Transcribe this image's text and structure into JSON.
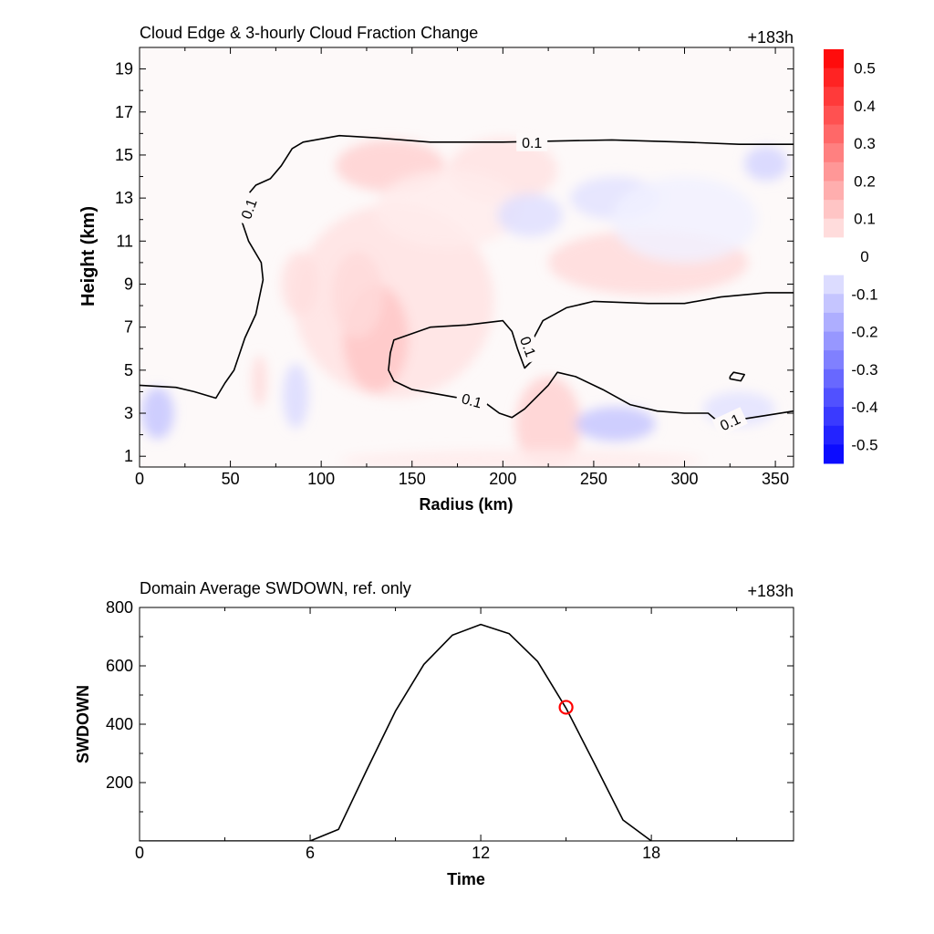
{
  "chart_data": [
    {
      "type": "heatmap",
      "title": "Cloud Edge & 3-hourly Cloud Fraction Change",
      "time_label": "+183h",
      "xlabel": "Radius (km)",
      "ylabel": "Height (km)",
      "xlim": [
        0,
        360
      ],
      "ylim": [
        0.5,
        20
      ],
      "x_ticks": [
        "0",
        "50",
        "100",
        "150",
        "200",
        "250",
        "300",
        "350"
      ],
      "y_ticks": [
        "1",
        "3",
        "5",
        "7",
        "9",
        "11",
        "13",
        "15",
        "17",
        "19"
      ],
      "colorbar": {
        "range": [
          -0.55,
          0.55
        ],
        "labels": [
          "0.5",
          "0.4",
          "0.3",
          "0.2",
          "0.1",
          "0",
          "-0.1",
          "-0.2",
          "-0.3",
          "-0.4",
          "-0.5"
        ],
        "positive_color": "#ff0000",
        "negative_color": "#0000ff"
      },
      "cloud_edge_contour": {
        "level": "0.1",
        "color": "#000000",
        "outer": [
          [
            0,
            4.3
          ],
          [
            20,
            4.2
          ],
          [
            30,
            4.0
          ],
          [
            42,
            3.7
          ],
          [
            47,
            4.4
          ],
          [
            52,
            5.0
          ],
          [
            58,
            6.5
          ],
          [
            64,
            7.6
          ],
          [
            68,
            9.2
          ],
          [
            67,
            10.0
          ],
          [
            60,
            11.0
          ],
          [
            56,
            12.0
          ],
          [
            57,
            12.8
          ],
          [
            61,
            13.3
          ],
          [
            64,
            13.6
          ],
          [
            72,
            13.9
          ],
          [
            78,
            14.5
          ],
          [
            84,
            15.3
          ],
          [
            90,
            15.6
          ],
          [
            110,
            15.9
          ],
          [
            130,
            15.8
          ],
          [
            160,
            15.6
          ],
          [
            200,
            15.6
          ],
          [
            260,
            15.7
          ],
          [
            300,
            15.6
          ],
          [
            330,
            15.5
          ],
          [
            360,
            15.5
          ]
        ],
        "middle": [
          [
            360,
            8.6
          ],
          [
            345,
            8.6
          ],
          [
            320,
            8.4
          ],
          [
            300,
            8.1
          ],
          [
            280,
            8.1
          ],
          [
            250,
            8.2
          ],
          [
            235,
            7.9
          ],
          [
            222,
            7.3
          ],
          [
            217,
            6.5
          ],
          [
            218,
            5.6
          ],
          [
            212,
            5.1
          ],
          [
            208,
            6.0
          ],
          [
            205,
            6.8
          ],
          [
            200,
            7.3
          ],
          [
            180,
            7.1
          ],
          [
            160,
            7.0
          ],
          [
            140,
            6.4
          ],
          [
            138,
            5.8
          ],
          [
            137,
            5.0
          ],
          [
            140,
            4.5
          ],
          [
            150,
            4.1
          ],
          [
            170,
            3.8
          ],
          [
            190,
            3.5
          ],
          [
            198,
            3.0
          ],
          [
            205,
            2.8
          ],
          [
            212,
            3.2
          ],
          [
            225,
            4.3
          ],
          [
            230,
            4.9
          ],
          [
            240,
            4.7
          ],
          [
            255,
            4.1
          ],
          [
            270,
            3.4
          ],
          [
            285,
            3.1
          ],
          [
            300,
            3.0
          ],
          [
            313,
            3.0
          ],
          [
            320,
            2.5
          ],
          [
            330,
            2.7
          ],
          [
            345,
            2.9
          ],
          [
            360,
            3.1
          ]
        ],
        "small": [
          [
            325,
            4.7
          ],
          [
            327,
            4.9
          ],
          [
            333,
            4.8
          ],
          [
            331,
            4.5
          ],
          [
            325,
            4.6
          ],
          [
            325,
            4.7
          ]
        ],
        "labels": [
          {
            "text": "0.1",
            "x": 216,
            "y": 15.6,
            "angle": 0
          },
          {
            "text": "0.1",
            "x": 60,
            "y": 12.5,
            "angle": -70
          },
          {
            "text": "0.1",
            "x": 214,
            "y": 6.1,
            "angle": 70
          },
          {
            "text": "0.1",
            "x": 183,
            "y": 3.6,
            "angle": 15
          },
          {
            "text": "0.1",
            "x": 325,
            "y": 2.6,
            "angle": -25
          }
        ]
      },
      "anomaly_blobs": [
        {
          "x": 140,
          "y": 8.2,
          "rx": 55,
          "ry": 4.5,
          "value": 0.06
        },
        {
          "x": 130,
          "y": 6.5,
          "rx": 18,
          "ry": 2.5,
          "value": 0.12
        },
        {
          "x": 120,
          "y": 8.5,
          "rx": 14,
          "ry": 2.0,
          "value": 0.08
        },
        {
          "x": 138,
          "y": 14.5,
          "rx": 30,
          "ry": 1.2,
          "value": 0.1
        },
        {
          "x": 280,
          "y": 10.0,
          "rx": 55,
          "ry": 1.5,
          "value": 0.08
        },
        {
          "x": 200,
          "y": 14.3,
          "rx": 30,
          "ry": 1.5,
          "value": 0.06
        },
        {
          "x": 88,
          "y": 9.0,
          "rx": 10,
          "ry": 1.5,
          "value": 0.07
        },
        {
          "x": 66,
          "y": 4.5,
          "rx": 4,
          "ry": 1.2,
          "value": 0.08
        },
        {
          "x": 225,
          "y": 2.5,
          "rx": 18,
          "ry": 2.2,
          "value": 0.1
        },
        {
          "x": 170,
          "y": 12.5,
          "rx": 40,
          "ry": 1.8,
          "value": 0.04
        },
        {
          "x": 210,
          "y": 0.8,
          "rx": 100,
          "ry": 0.5,
          "value": 0.04
        },
        {
          "x": 10,
          "y": 3.0,
          "rx": 9,
          "ry": 1.2,
          "value": -0.12
        },
        {
          "x": 86,
          "y": 3.8,
          "rx": 7,
          "ry": 1.5,
          "value": -0.08
        },
        {
          "x": 262,
          "y": 2.5,
          "rx": 22,
          "ry": 0.8,
          "value": -0.12
        },
        {
          "x": 215,
          "y": 12.2,
          "rx": 18,
          "ry": 1.0,
          "value": -0.07
        },
        {
          "x": 262,
          "y": 13.0,
          "rx": 25,
          "ry": 1.0,
          "value": -0.06
        },
        {
          "x": 345,
          "y": 14.6,
          "rx": 12,
          "ry": 0.8,
          "value": -0.09
        },
        {
          "x": 330,
          "y": 3.2,
          "rx": 20,
          "ry": 0.8,
          "value": -0.06
        },
        {
          "x": 300,
          "y": 12.0,
          "rx": 40,
          "ry": 2.0,
          "value": -0.03
        }
      ]
    },
    {
      "type": "line",
      "title": "Domain Average SWDOWN, ref. only",
      "time_label": "+183h",
      "xlabel": "Time",
      "ylabel": "SWDOWN",
      "xlim": [
        0,
        23
      ],
      "ylim": [
        0,
        800
      ],
      "x_ticks": [
        "0",
        "6",
        "12",
        "18"
      ],
      "y_ticks": [
        "200",
        "400",
        "600",
        "800"
      ],
      "series": [
        {
          "x": [
            0,
            1,
            2,
            3,
            4,
            5,
            6,
            7,
            8,
            9,
            10,
            11,
            12,
            13,
            14,
            15,
            16,
            17,
            18,
            19,
            20,
            21,
            22,
            23
          ],
          "values": [
            0,
            0,
            0,
            0,
            0,
            0,
            0,
            40,
            245,
            445,
            605,
            705,
            742,
            710,
            615,
            455,
            265,
            72,
            0,
            0,
            0,
            0,
            0,
            0
          ],
          "color": "#000000"
        }
      ],
      "marker": {
        "x": 15,
        "y": 458,
        "shape": "circle",
        "color": "#ff0000"
      }
    }
  ]
}
